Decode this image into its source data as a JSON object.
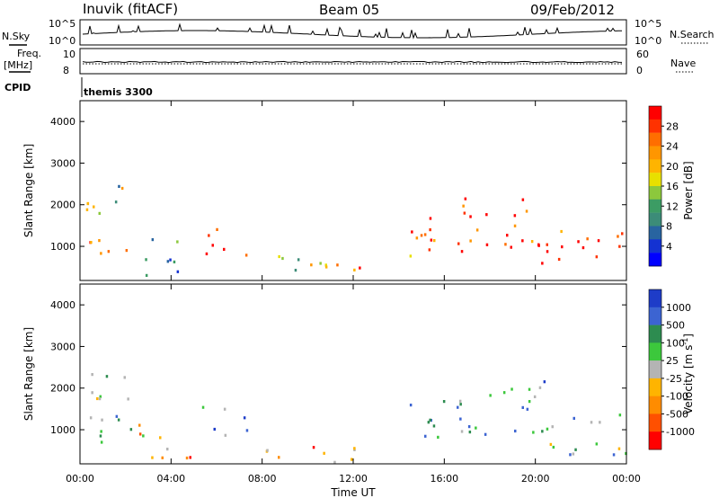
{
  "header": {
    "station": "Inuvik (fitACF)",
    "beam": "Beam 05",
    "date": "09/Feb/2012"
  },
  "strip_labels": {
    "nsky": "N.Sky",
    "nsearch": "N.Search",
    "freq_top": "Freq.",
    "freq_unit": "[MHz]",
    "cpid": "CPID",
    "nave": "Nave",
    "nsky_ticks": [
      "10^5",
      "10^0"
    ],
    "nsearch_ticks": [
      "10^5",
      "10^0"
    ],
    "freq_ticks": [
      "10",
      "8"
    ],
    "nave_ticks": [
      "60",
      "0"
    ],
    "cpid_value": "themis 3300"
  },
  "chart_data": [
    {
      "type": "heatmap",
      "title": "",
      "ylabel": "Slant Range [km]",
      "xlabel": "",
      "ylim": [
        180,
        4500
      ],
      "y_ticks": [
        "1000",
        "2000",
        "3000",
        "4000"
      ],
      "colorbar": {
        "label": "Power [dB]",
        "ticks": [
          "28",
          "24",
          "20",
          "16",
          "12",
          "8",
          "4"
        ],
        "colors": [
          "#ff0000",
          "#ff3200",
          "#ff6e00",
          "#ff9600",
          "#ffb400",
          "#e8e000",
          "#8cc83c",
          "#3c9c64",
          "#3c8c78",
          "#2864a0",
          "#1432d2",
          "#0000ff"
        ]
      },
      "echo_regions": [
        {
          "t": [
            0.2,
            3.0
          ],
          "r": [
            700,
            1300
          ],
          "level": 0.8
        },
        {
          "t": [
            0.2,
            2.2
          ],
          "r": [
            1700,
            2700
          ],
          "level": 0.45
        },
        {
          "t": [
            2.5,
            4.8
          ],
          "r": [
            300,
            1200
          ],
          "level": 0.35
        },
        {
          "t": [
            5.2,
            7.3
          ],
          "r": [
            800,
            1600
          ],
          "level": 0.9
        },
        {
          "t": [
            8.0,
            10.2
          ],
          "r": [
            250,
            800
          ],
          "level": 0.5
        },
        {
          "t": [
            10.3,
            12.3
          ],
          "r": [
            250,
            800
          ],
          "level": 0.55
        },
        {
          "t": [
            11.0,
            12.6
          ],
          "r": [
            300,
            600
          ],
          "level": 0.85
        },
        {
          "t": [
            14.3,
            16.8
          ],
          "r": [
            800,
            1800
          ],
          "level": 0.8
        },
        {
          "t": [
            16.5,
            20.5
          ],
          "r": [
            900,
            2200
          ],
          "level": 0.85
        },
        {
          "t": [
            20.0,
            24.0
          ],
          "r": [
            400,
            1400
          ],
          "level": 0.9
        }
      ]
    },
    {
      "type": "heatmap",
      "title": "",
      "ylabel": "Slant Range [km]",
      "xlabel": "Time UT",
      "ylim": [
        180,
        4500
      ],
      "y_ticks": [
        "1000",
        "2000",
        "3000",
        "4000"
      ],
      "x_ticks": [
        "00:00",
        "04:00",
        "08:00",
        "12:00",
        "16:00",
        "20:00",
        "00:00"
      ],
      "colorbar": {
        "label": "Velocity [m s",
        "label_sup": "-1",
        "label_end": "]",
        "ticks": [
          "1000",
          "500",
          "100",
          "25",
          "-25",
          "-100",
          "-500",
          "-1000"
        ],
        "colors": [
          "#1e3cc8",
          "#3c64d2",
          "#2d8c50",
          "#3cc83c",
          "#b4b4b4",
          "#ffb400",
          "#ff8c00",
          "#ff5000",
          "#ff0000"
        ]
      },
      "echo_regions": [
        {
          "t": [
            0.2,
            3.0
          ],
          "r": [
            700,
            1500
          ],
          "level": 0.6
        },
        {
          "t": [
            0.2,
            2.2
          ],
          "r": [
            1700,
            2700
          ],
          "level": 0.45
        },
        {
          "t": [
            2.5,
            4.8
          ],
          "r": [
            300,
            1200
          ],
          "level": 0.35
        },
        {
          "t": [
            5.2,
            7.3
          ],
          "r": [
            800,
            1600
          ],
          "level": 0.7
        },
        {
          "t": [
            8.0,
            12.3
          ],
          "r": [
            250,
            800
          ],
          "level": 0.3
        },
        {
          "t": [
            14.3,
            16.8
          ],
          "r": [
            800,
            1800
          ],
          "level": 0.7
        },
        {
          "t": [
            16.5,
            20.5
          ],
          "r": [
            900,
            2200
          ],
          "level": 0.72
        },
        {
          "t": [
            20.0,
            24.0
          ],
          "r": [
            400,
            1400
          ],
          "level": 0.65
        }
      ]
    }
  ]
}
